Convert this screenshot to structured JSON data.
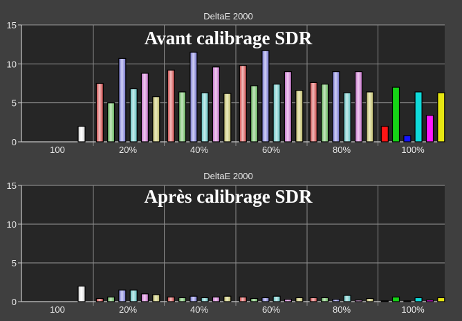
{
  "chart_data": [
    {
      "type": "bar",
      "title": "DeltaE 2000",
      "overlay_text": "Avant calibrage SDR",
      "ylim": [
        0,
        15
      ],
      "y_ticks": [
        "0",
        "5",
        "10",
        "15"
      ],
      "grid": true,
      "categories": [
        "100",
        "20%",
        "40%",
        "60%",
        "80%",
        "100%"
      ],
      "groups": [
        {
          "category": "100",
          "bars": [
            {
              "color": "white",
              "value": 2.0
            }
          ]
        },
        {
          "category": "20%",
          "bars": [
            {
              "color": "red",
              "value": 7.5
            },
            {
              "color": "green",
              "value": 5.0
            },
            {
              "color": "blue",
              "value": 10.7
            },
            {
              "color": "cyan",
              "value": 6.8
            },
            {
              "color": "magenta",
              "value": 8.8
            },
            {
              "color": "yellow",
              "value": 5.8
            }
          ]
        },
        {
          "category": "40%",
          "bars": [
            {
              "color": "red",
              "value": 9.2
            },
            {
              "color": "green",
              "value": 6.4
            },
            {
              "color": "blue",
              "value": 11.5
            },
            {
              "color": "cyan",
              "value": 6.3
            },
            {
              "color": "magenta",
              "value": 9.6
            },
            {
              "color": "yellow",
              "value": 6.2
            }
          ]
        },
        {
          "category": "60%",
          "bars": [
            {
              "color": "red",
              "value": 9.8
            },
            {
              "color": "green",
              "value": 7.2
            },
            {
              "color": "blue",
              "value": 11.7
            },
            {
              "color": "cyan",
              "value": 7.4
            },
            {
              "color": "magenta",
              "value": 9.0
            },
            {
              "color": "yellow",
              "value": 6.6
            }
          ]
        },
        {
          "category": "80%",
          "bars": [
            {
              "color": "red",
              "value": 7.6
            },
            {
              "color": "green",
              "value": 7.4
            },
            {
              "color": "blue",
              "value": 9.0
            },
            {
              "color": "cyan",
              "value": 6.3
            },
            {
              "color": "magenta",
              "value": 9.0
            },
            {
              "color": "yellow",
              "value": 6.4
            }
          ]
        },
        {
          "category": "100%",
          "bars": [
            {
              "color": "red",
              "value": 2.0
            },
            {
              "color": "green",
              "value": 7.0
            },
            {
              "color": "blue",
              "value": 0.8
            },
            {
              "color": "cyan",
              "value": 6.4
            },
            {
              "color": "magenta",
              "value": 3.4
            },
            {
              "color": "yellow",
              "value": 6.3
            }
          ]
        }
      ]
    },
    {
      "type": "bar",
      "title": "DeltaE 2000",
      "overlay_text": "Après calibrage SDR",
      "ylim": [
        0,
        15
      ],
      "y_ticks": [
        "0",
        "5",
        "10",
        "15"
      ],
      "grid": true,
      "categories": [
        "100",
        "20%",
        "40%",
        "60%",
        "80%",
        "100%"
      ],
      "groups": [
        {
          "category": "100",
          "bars": [
            {
              "color": "white",
              "value": 2.0
            }
          ]
        },
        {
          "category": "20%",
          "bars": [
            {
              "color": "red",
              "value": 0.4
            },
            {
              "color": "green",
              "value": 0.6
            },
            {
              "color": "blue",
              "value": 1.5
            },
            {
              "color": "cyan",
              "value": 1.5
            },
            {
              "color": "magenta",
              "value": 1.0
            },
            {
              "color": "yellow",
              "value": 0.9
            }
          ]
        },
        {
          "category": "40%",
          "bars": [
            {
              "color": "red",
              "value": 0.6
            },
            {
              "color": "green",
              "value": 0.5
            },
            {
              "color": "blue",
              "value": 0.7
            },
            {
              "color": "cyan",
              "value": 0.5
            },
            {
              "color": "magenta",
              "value": 0.6
            },
            {
              "color": "yellow",
              "value": 0.7
            }
          ]
        },
        {
          "category": "60%",
          "bars": [
            {
              "color": "red",
              "value": 0.6
            },
            {
              "color": "green",
              "value": 0.4
            },
            {
              "color": "blue",
              "value": 0.5
            },
            {
              "color": "cyan",
              "value": 0.7
            },
            {
              "color": "magenta",
              "value": 0.3
            },
            {
              "color": "yellow",
              "value": 0.5
            }
          ]
        },
        {
          "category": "80%",
          "bars": [
            {
              "color": "red",
              "value": 0.5
            },
            {
              "color": "green",
              "value": 0.5
            },
            {
              "color": "blue",
              "value": 0.3
            },
            {
              "color": "cyan",
              "value": 0.8
            },
            {
              "color": "magenta",
              "value": 0.2
            },
            {
              "color": "yellow",
              "value": 0.4
            }
          ]
        },
        {
          "category": "100%",
          "bars": [
            {
              "color": "red",
              "value": 0.1
            },
            {
              "color": "green",
              "value": 0.6
            },
            {
              "color": "blue",
              "value": 0.1
            },
            {
              "color": "cyan",
              "value": 0.5
            },
            {
              "color": "magenta",
              "value": 0.2
            },
            {
              "color": "yellow",
              "value": 0.5
            }
          ]
        }
      ]
    }
  ],
  "colors": {
    "white": "#ffffff",
    "red": "#c94545",
    "green": "#5fae57",
    "blue": "#6f6fc9",
    "cyan": "#5fbcbc",
    "magenta": "#c06ec6",
    "yellow": "#b9b46a",
    "red_light": "#f2bcbc",
    "green_light": "#c6e6c0",
    "blue_light": "#d0d0f6",
    "cyan_light": "#c6ecec",
    "magenta_light": "#f0caf0",
    "yellow_light": "#ececbe",
    "vivid": {
      "red": "#ff1515",
      "green": "#16d416",
      "blue": "#1515ff",
      "cyan": "#10dada",
      "magenta": "#ff1aff",
      "yellow": "#e6e612"
    },
    "plot_bg": "#262626",
    "page_bg": "#3f3f3f",
    "grid": "#9a9a9a"
  }
}
